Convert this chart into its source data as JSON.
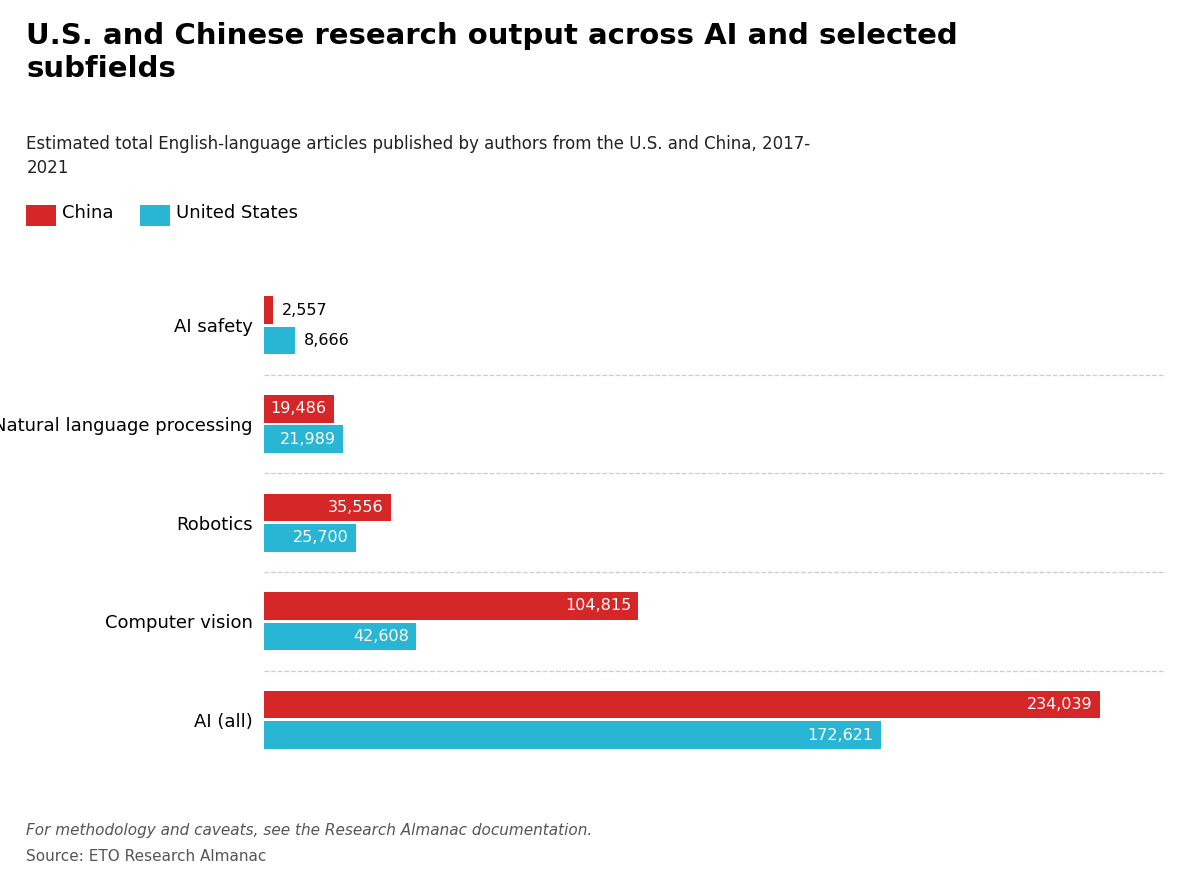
{
  "title": "U.S. and Chinese research output across AI and selected\nsubfields",
  "subtitle": "Estimated total English-language articles published by authors from the U.S. and China, 2017-\n2021",
  "categories": [
    "AI safety",
    "Natural language processing",
    "Robotics",
    "Computer vision",
    "AI (all)"
  ],
  "china_values": [
    2557,
    19486,
    35556,
    104815,
    234039
  ],
  "us_values": [
    8666,
    21989,
    25700,
    42608,
    172621
  ],
  "china_color": "#d62728",
  "us_color": "#29b5d4",
  "china_label": "China",
  "us_label": "United States",
  "footnote": "For methodology and caveats, see the Research Almanac documentation.",
  "source": "Source: ETO Research Almanac",
  "background_color": "#ffffff",
  "bar_height": 0.28,
  "xlim": [
    0,
    252000
  ],
  "label_threshold": 15000
}
